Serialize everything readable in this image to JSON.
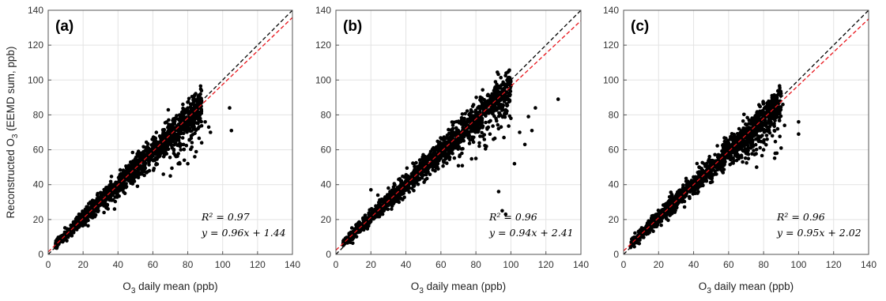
{
  "chart_data": [
    {
      "type": "scatter",
      "panel_label": "(a)",
      "xlabel": "O3 daily mean (ppb)",
      "ylabel": "Reconstructed O3 (EEMD sum, ppb)",
      "xlim": [
        0,
        140
      ],
      "ylim": [
        0,
        140
      ],
      "xticks": [
        0,
        20,
        40,
        60,
        80,
        100,
        120,
        140
      ],
      "yticks": [
        0,
        20,
        40,
        60,
        80,
        100,
        120,
        140
      ],
      "grid": true,
      "r2": 0.97,
      "slope": 0.96,
      "intercept": 1.44,
      "r2_text": "R² = 0.97",
      "fit_text": "y = 0.96x + 1.44",
      "marker_color": "#000000",
      "reference_line": {
        "style": "dashed",
        "color": "#000000",
        "slope": 1,
        "intercept": 0
      },
      "fit_line": {
        "style": "dashed",
        "color": "#e8141a"
      },
      "outliers": [
        [
          104,
          84
        ],
        [
          105,
          71
        ],
        [
          93,
          70
        ],
        [
          88,
          64
        ],
        [
          84,
          56
        ],
        [
          80,
          52
        ],
        [
          70,
          45
        ],
        [
          76,
          60
        ],
        [
          72,
          58
        ],
        [
          86,
          78
        ],
        [
          90,
          76
        ],
        [
          82,
          68
        ],
        [
          32,
          24
        ],
        [
          38,
          26
        ],
        [
          44,
          35
        ],
        [
          58,
          48
        ],
        [
          62,
          52
        ],
        [
          66,
          46
        ],
        [
          78,
          54
        ],
        [
          92,
          73
        ]
      ]
    },
    {
      "type": "scatter",
      "panel_label": "(b)",
      "xlabel": "O3 daily mean (ppb)",
      "xlim": [
        0,
        140
      ],
      "ylim": [
        0,
        140
      ],
      "xticks": [
        0,
        20,
        40,
        60,
        80,
        100,
        120,
        140
      ],
      "yticks": [
        0,
        20,
        40,
        60,
        80,
        100,
        120,
        140
      ],
      "grid": true,
      "r2": 0.96,
      "slope": 0.94,
      "intercept": 2.41,
      "r2_text": "R² = 0.96",
      "fit_text": "y = 0.94x + 2.41",
      "marker_color": "#000000",
      "reference_line": {
        "style": "dashed",
        "color": "#000000",
        "slope": 1,
        "intercept": 0
      },
      "fit_line": {
        "style": "dashed",
        "color": "#e8141a"
      },
      "outliers": [
        [
          127,
          89
        ],
        [
          114,
          84
        ],
        [
          102,
          52
        ],
        [
          93,
          36
        ],
        [
          95,
          25
        ],
        [
          97,
          23
        ],
        [
          112,
          71
        ],
        [
          105,
          70
        ],
        [
          100,
          78
        ],
        [
          96,
          67
        ],
        [
          90,
          66
        ],
        [
          86,
          62
        ],
        [
          80,
          55
        ],
        [
          72,
          58
        ],
        [
          20,
          37
        ],
        [
          24,
          34
        ],
        [
          30,
          38
        ],
        [
          110,
          79
        ],
        [
          108,
          63
        ],
        [
          88,
          69
        ]
      ]
    },
    {
      "type": "scatter",
      "panel_label": "(c)",
      "xlabel": "O3 daily mean (ppb)",
      "xlim": [
        0,
        140
      ],
      "ylim": [
        0,
        140
      ],
      "xticks": [
        0,
        20,
        40,
        60,
        80,
        100,
        120,
        140
      ],
      "yticks": [
        0,
        20,
        40,
        60,
        80,
        100,
        120,
        140
      ],
      "grid": true,
      "r2": 0.96,
      "slope": 0.95,
      "intercept": 2.02,
      "r2_text": "R² = 0.96",
      "fit_text": "y = 0.95x + 2.02",
      "marker_color": "#000000",
      "reference_line": {
        "style": "dashed",
        "color": "#000000",
        "slope": 1,
        "intercept": 0
      },
      "fit_line": {
        "style": "dashed",
        "color": "#e8141a"
      },
      "outliers": [
        [
          100,
          76
        ],
        [
          100,
          69
        ],
        [
          91,
          86
        ],
        [
          88,
          72
        ],
        [
          85,
          68
        ],
        [
          80,
          60
        ],
        [
          76,
          50
        ],
        [
          70,
          58
        ],
        [
          68,
          53
        ],
        [
          92,
          74
        ],
        [
          82,
          66
        ],
        [
          74,
          62
        ],
        [
          4,
          4
        ],
        [
          90,
          61
        ],
        [
          86,
          75
        ]
      ]
    }
  ]
}
